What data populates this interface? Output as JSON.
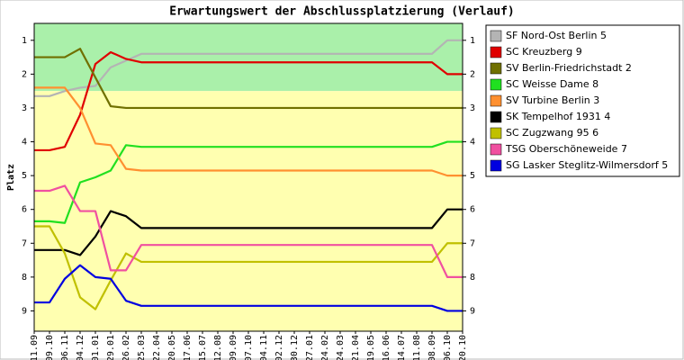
{
  "chart_data": {
    "type": "line",
    "title": "Erwartungswert der Abschlussplatzierung (Verlauf)",
    "y_label": "Platz",
    "y_inverted": true,
    "ylim": [
      0.5,
      9.6
    ],
    "yticks": [
      1,
      2,
      3,
      4,
      5,
      6,
      7,
      8,
      9
    ],
    "bands": [
      {
        "from": 0.5,
        "to": 2.5,
        "color": "#aaf0aa"
      },
      {
        "from": 2.5,
        "to": 9.6,
        "color": "#ffffb0"
      }
    ],
    "legend": "right",
    "categories": [
      "11.09",
      "09.10",
      "06.11",
      "04.12",
      "01.01",
      "29.01",
      "26.02",
      "25.03",
      "22.04",
      "20.05",
      "17.06",
      "15.07",
      "12.08",
      "09.09",
      "07.10",
      "04.11",
      "02.12",
      "30.12",
      "27.01",
      "24.02",
      "24.03",
      "21.04",
      "19.05",
      "16.06",
      "14.07",
      "11.08",
      "08.09",
      "06.10",
      "20.10"
    ],
    "series": [
      {
        "name": "SF Nord-Ost Berlin 5",
        "color": "#b4b4b4",
        "values": [
          2.65,
          2.65,
          2.5,
          2.4,
          2.35,
          1.8,
          1.6,
          1.4,
          1.4,
          1.4,
          1.4,
          1.4,
          1.4,
          1.4,
          1.4,
          1.4,
          1.4,
          1.4,
          1.4,
          1.4,
          1.4,
          1.4,
          1.4,
          1.4,
          1.4,
          1.4,
          1.4,
          1,
          1
        ]
      },
      {
        "name": "SC Kreuzberg 9",
        "color": "#e00000",
        "values": [
          4.25,
          4.25,
          4.15,
          3.2,
          1.7,
          1.35,
          1.55,
          1.65,
          1.65,
          1.65,
          1.65,
          1.65,
          1.65,
          1.65,
          1.65,
          1.65,
          1.65,
          1.65,
          1.65,
          1.65,
          1.65,
          1.65,
          1.65,
          1.65,
          1.65,
          1.65,
          1.65,
          2,
          2
        ]
      },
      {
        "name": "SV Berlin-Friedrichstadt 2",
        "color": "#707000",
        "values": [
          1.5,
          1.5,
          1.5,
          1.25,
          2.1,
          2.95,
          3,
          3,
          3,
          3,
          3,
          3,
          3,
          3,
          3,
          3,
          3,
          3,
          3,
          3,
          3,
          3,
          3,
          3,
          3,
          3,
          3,
          3,
          3
        ]
      },
      {
        "name": "SC Weisse Dame 8",
        "color": "#20e020",
        "values": [
          6.35,
          6.35,
          6.4,
          5.2,
          5.05,
          4.85,
          4.1,
          4.15,
          4.15,
          4.15,
          4.15,
          4.15,
          4.15,
          4.15,
          4.15,
          4.15,
          4.15,
          4.15,
          4.15,
          4.15,
          4.15,
          4.15,
          4.15,
          4.15,
          4.15,
          4.15,
          4.15,
          4,
          4
        ]
      },
      {
        "name": "SV Turbine Berlin 3",
        "color": "#ff9030",
        "values": [
          2.4,
          2.4,
          2.4,
          3,
          4.05,
          4.1,
          4.8,
          4.85,
          4.85,
          4.85,
          4.85,
          4.85,
          4.85,
          4.85,
          4.85,
          4.85,
          4.85,
          4.85,
          4.85,
          4.85,
          4.85,
          4.85,
          4.85,
          4.85,
          4.85,
          4.85,
          4.85,
          5,
          5
        ]
      },
      {
        "name": "SK Tempelhof 1931 4",
        "color": "#000000",
        "values": [
          7.2,
          7.2,
          7.2,
          7.35,
          6.8,
          6.05,
          6.2,
          6.55,
          6.55,
          6.55,
          6.55,
          6.55,
          6.55,
          6.55,
          6.55,
          6.55,
          6.55,
          6.55,
          6.55,
          6.55,
          6.55,
          6.55,
          6.55,
          6.55,
          6.55,
          6.55,
          6.55,
          6,
          6
        ]
      },
      {
        "name": "SC Zugzwang 95 6",
        "color": "#c0c000",
        "values": [
          6.5,
          6.5,
          7.3,
          8.6,
          8.95,
          8.1,
          7.3,
          7.55,
          7.55,
          7.55,
          7.55,
          7.55,
          7.55,
          7.55,
          7.55,
          7.55,
          7.55,
          7.55,
          7.55,
          7.55,
          7.55,
          7.55,
          7.55,
          7.55,
          7.55,
          7.55,
          7.55,
          7,
          7
        ]
      },
      {
        "name": "TSG Oberschöneweide 7",
        "color": "#f050a0",
        "values": [
          5.45,
          5.45,
          5.3,
          6.05,
          6.05,
          7.8,
          7.8,
          7.05,
          7.05,
          7.05,
          7.05,
          7.05,
          7.05,
          7.05,
          7.05,
          7.05,
          7.05,
          7.05,
          7.05,
          7.05,
          7.05,
          7.05,
          7.05,
          7.05,
          7.05,
          7.05,
          7.05,
          8,
          8
        ]
      },
      {
        "name": "SG Lasker Steglitz-Wilmersdorf 5",
        "color": "#0000e0",
        "values": [
          8.75,
          8.75,
          8.05,
          7.65,
          8,
          8.05,
          8.7,
          8.85,
          8.85,
          8.85,
          8.85,
          8.85,
          8.85,
          8.85,
          8.85,
          8.85,
          8.85,
          8.85,
          8.85,
          8.85,
          8.85,
          8.85,
          8.85,
          8.85,
          8.85,
          8.85,
          8.85,
          9,
          9
        ]
      }
    ]
  }
}
